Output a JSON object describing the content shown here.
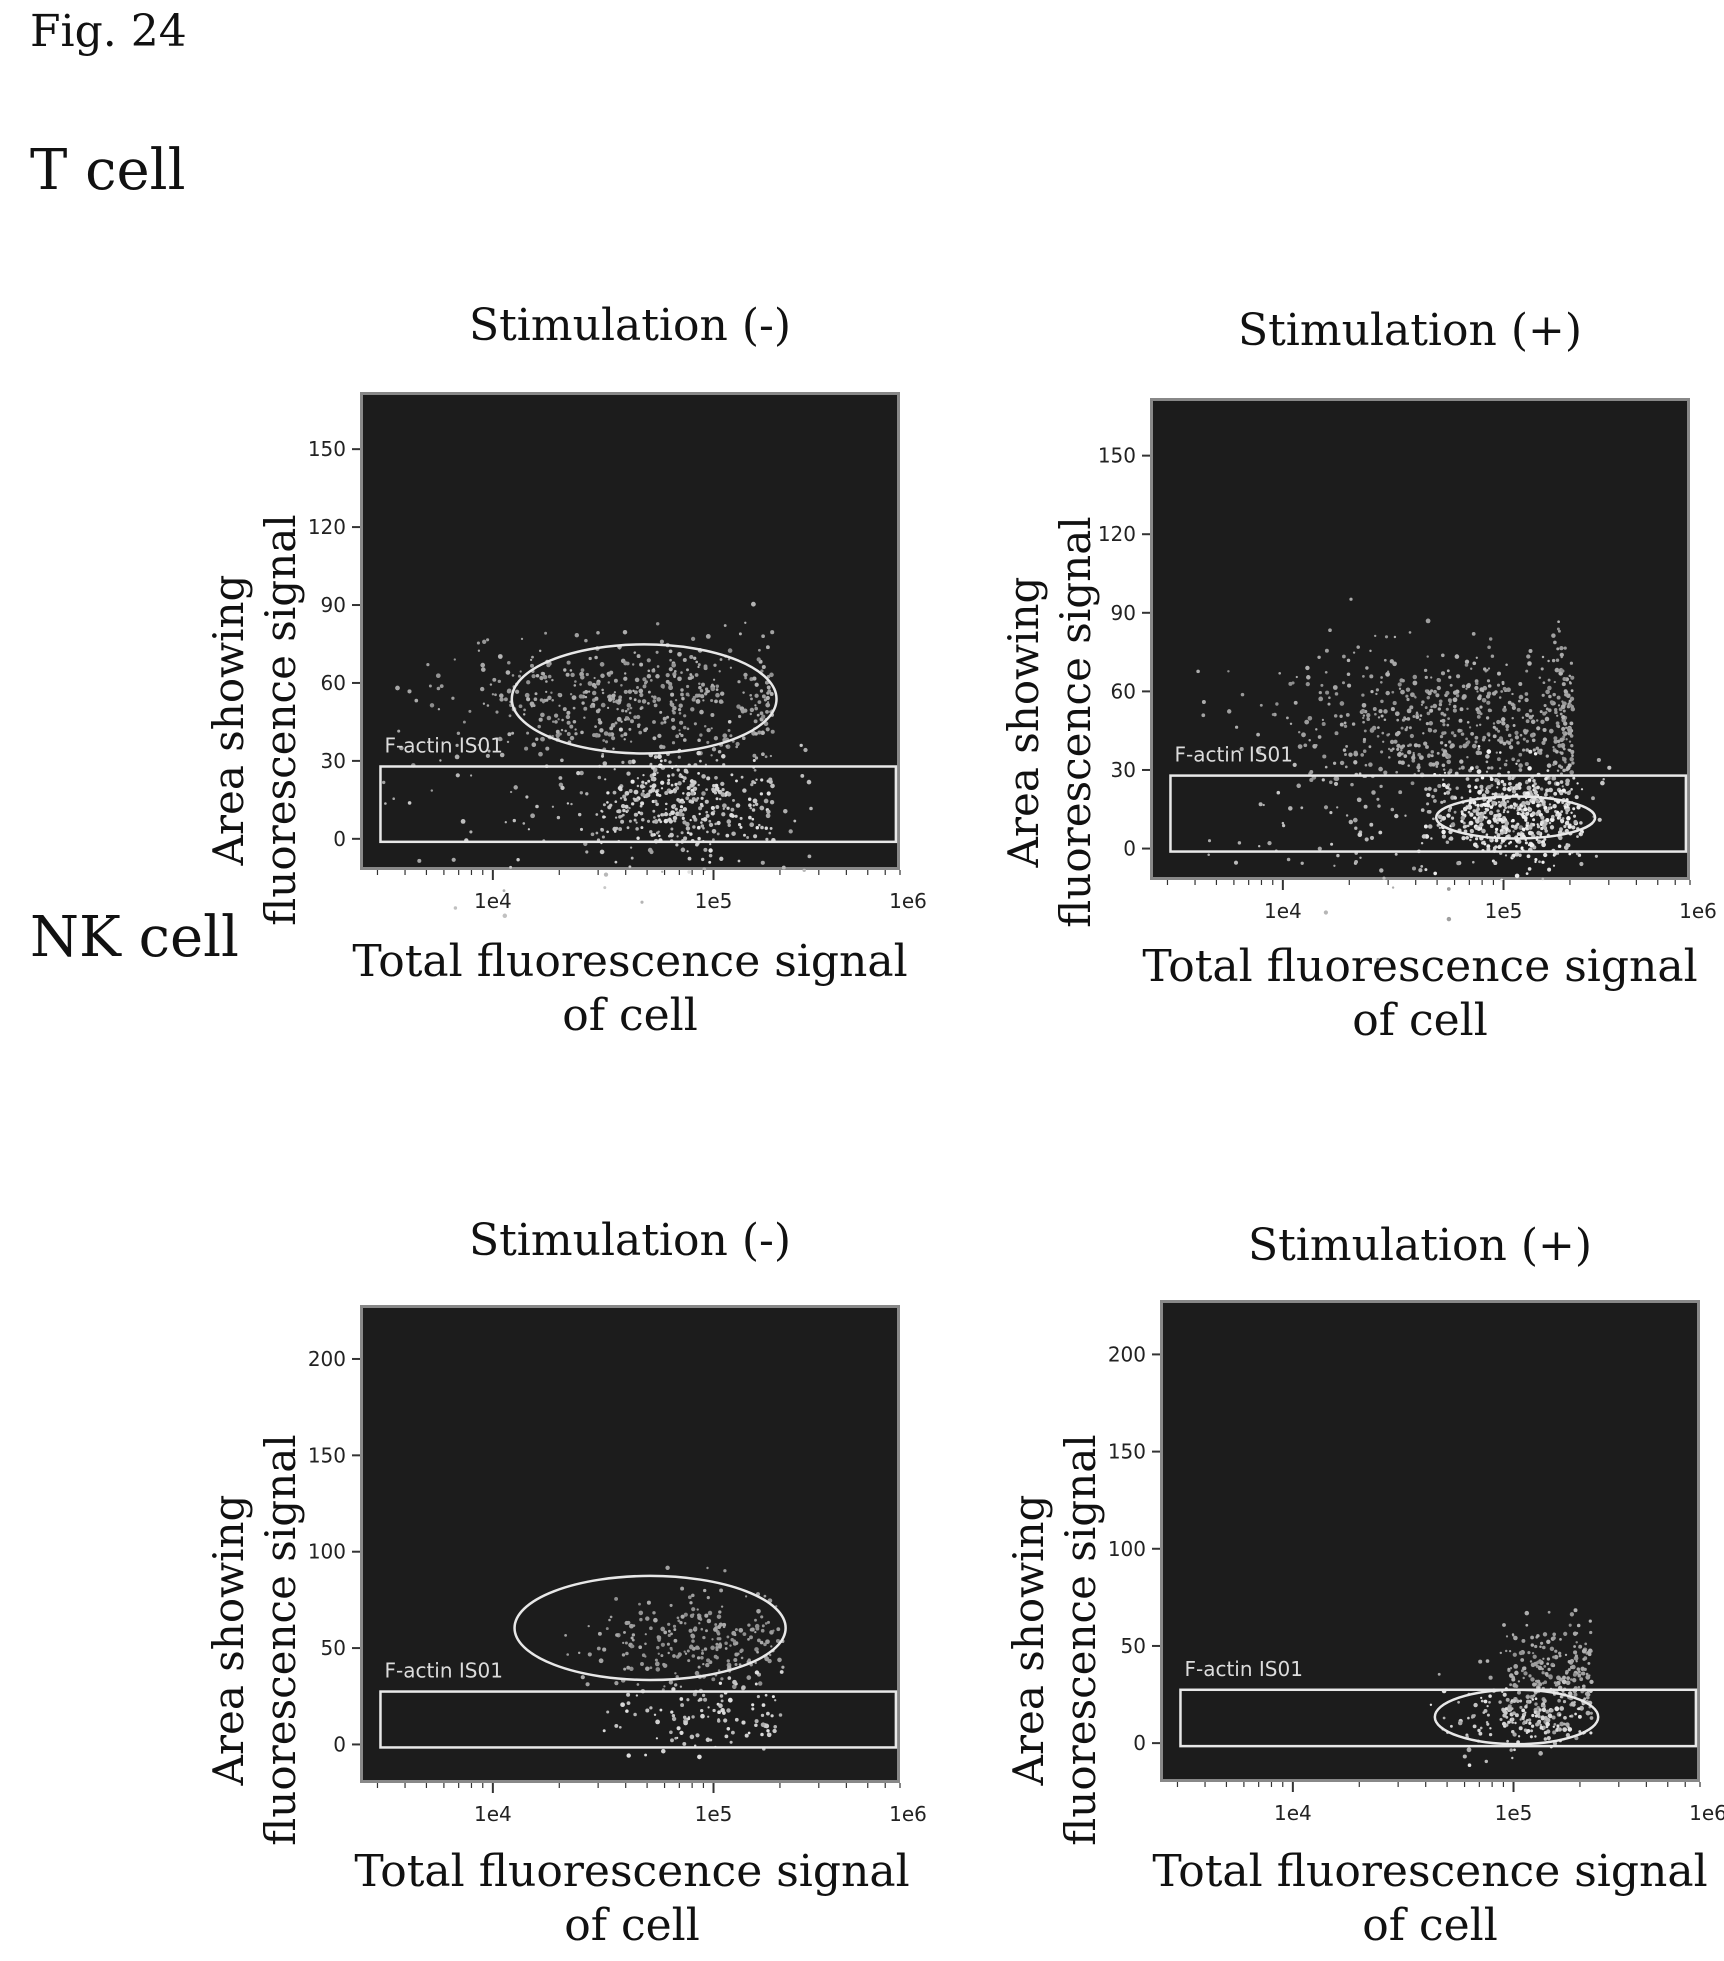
{
  "figure": {
    "label": "Fig. 24"
  },
  "sections": [
    {
      "title": "T cell"
    },
    {
      "title": "NK cell"
    }
  ],
  "chart_data": [
    {
      "type": "scatter",
      "section": "T cell",
      "title": "Stimulation (-)",
      "xlabel": "Total fluorescence signal of cell",
      "xlabel_lines": [
        "Total fluorescence signal",
        "of cell"
      ],
      "ylabel": "Area showing fluorescence signal",
      "ylabel_lines": [
        "Area showing",
        "fluorescence signal"
      ],
      "xscale": "log",
      "xlim": [
        2500,
        700000
      ],
      "ylim": [
        -12,
        172
      ],
      "xticks": [
        10000,
        100000,
        1000000
      ],
      "xtick_labels": [
        "1e4",
        "1e5",
        "1e6"
      ],
      "yticks": [
        0,
        30,
        60,
        90,
        120,
        150
      ],
      "ytick_labels": [
        "0",
        "30",
        "60",
        "90",
        "120",
        "150"
      ],
      "gate": {
        "name": "F-actin IS01",
        "x_range": [
          3000,
          650000
        ],
        "y_range": [
          0,
          29
        ]
      },
      "ellipse_gate": {
        "center": [
          47000,
          55
        ],
        "x_range": [
          12000,
          190000
        ],
        "y_half": 21
      },
      "clusters": [
        {
          "center": [
            45000,
            55
          ],
          "x_range": [
            3500,
            180000
          ],
          "y_spread": 12,
          "n": 520,
          "brightness": 0.55
        },
        {
          "center": [
            75000,
            14
          ],
          "x_range": [
            30000,
            180000
          ],
          "y_spread": 10,
          "n": 320,
          "brightness": 0.85
        },
        {
          "center": [
            40000,
            12
          ],
          "x_range": [
            3000,
            300000
          ],
          "y_spread": 14,
          "n": 120,
          "brightness": 0.7
        }
      ]
    },
    {
      "type": "scatter",
      "section": "T cell",
      "title": "Stimulation (+)",
      "xlabel": "Total fluorescence signal of cell",
      "xlabel_lines": [
        "Total fluorescence signal",
        "of cell"
      ],
      "ylabel": "Area showing fluorescence signal",
      "ylabel_lines": [
        "Area showing",
        "fluorescence signal"
      ],
      "xscale": "log",
      "xlim": [
        2500,
        700000
      ],
      "ylim": [
        -12,
        172
      ],
      "xticks": [
        10000,
        100000,
        1000000
      ],
      "xtick_labels": [
        "1e4",
        "1e5",
        "1e6"
      ],
      "yticks": [
        0,
        30,
        60,
        90,
        120,
        150
      ],
      "ytick_labels": [
        "0",
        "30",
        "60",
        "90",
        "120",
        "150"
      ],
      "gate": {
        "name": "F-actin IS01",
        "x_range": [
          3000,
          650000
        ],
        "y_range": [
          0,
          29
        ]
      },
      "ellipse_gate": {
        "center": [
          110000,
          13
        ],
        "x_range": [
          40000,
          210000
        ],
        "y_half": 8
      },
      "clusters": [
        {
          "center": [
            60000,
            50
          ],
          "x_range": [
            4000,
            200000
          ],
          "y_spread": 14,
          "n": 650,
          "brightness": 0.55
        },
        {
          "center": [
            110000,
            13
          ],
          "x_range": [
            40000,
            220000
          ],
          "y_spread": 9,
          "n": 520,
          "brightness": 0.95
        },
        {
          "center": [
            40000,
            12
          ],
          "x_range": [
            4000,
            300000
          ],
          "y_spread": 12,
          "n": 120,
          "brightness": 0.7
        }
      ]
    },
    {
      "type": "scatter",
      "section": "NK cell",
      "title": "Stimulation (-)",
      "xlabel": "Total fluorescence signal of cell",
      "xlabel_lines": [
        "Total fluorescence signal",
        "of cell"
      ],
      "ylabel": "Area showing fluorescence signal",
      "ylabel_lines": [
        "Area showing",
        "fluorescence signal"
      ],
      "xscale": "log",
      "xlim": [
        2500,
        700000
      ],
      "ylim": [
        -20,
        228
      ],
      "xticks": [
        10000,
        100000,
        1000000
      ],
      "xtick_labels": [
        "1e4",
        "1e5",
        "1e6"
      ],
      "yticks": [
        0,
        50,
        100,
        150,
        200
      ],
      "ytick_labels": [
        "0",
        "50",
        "100",
        "150",
        "200"
      ],
      "gate": {
        "name": "F-actin IS01",
        "x_range": [
          3000,
          650000
        ],
        "y_range": [
          0,
          29
        ]
      },
      "ellipse_gate": {
        "center": [
          50000,
          62
        ],
        "x_range": [
          13000,
          220000
        ],
        "y_half": 27
      },
      "clusters": [
        {
          "center": [
            80000,
            55
          ],
          "x_range": [
            20000,
            200000
          ],
          "y_spread": 12,
          "n": 260,
          "brightness": 0.5
        },
        {
          "center": [
            90000,
            15
          ],
          "x_range": [
            30000,
            200000
          ],
          "y_spread": 10,
          "n": 110,
          "brightness": 0.85
        }
      ]
    },
    {
      "type": "scatter",
      "section": "NK cell",
      "title": "Stimulation (+)",
      "xlabel": "Total fluorescence signal of cell",
      "xlabel_lines": [
        "Total fluorescence signal",
        "of cell"
      ],
      "ylabel": "Area showing fluorescence signal",
      "ylabel_lines": [
        "Area showing",
        "fluorescence signal"
      ],
      "xscale": "log",
      "xlim": [
        2500,
        700000
      ],
      "ylim": [
        -20,
        228
      ],
      "xticks": [
        10000,
        100000,
        1000000
      ],
      "xtick_labels": [
        "1e4",
        "1e5",
        "1e6"
      ],
      "yticks": [
        0,
        50,
        100,
        150,
        200
      ],
      "ytick_labels": [
        "0",
        "50",
        "100",
        "150",
        "200"
      ],
      "gate": {
        "name": "F-actin IS01",
        "x_range": [
          3000,
          650000
        ],
        "y_range": [
          0,
          29
        ]
      },
      "ellipse_gate": {
        "center": [
          100000,
          15
        ],
        "x_range": [
          40000,
          220000
        ],
        "y_half": 14
      },
      "clusters": [
        {
          "center": [
            150000,
            40
          ],
          "x_range": [
            60000,
            220000
          ],
          "y_spread": 14,
          "n": 220,
          "brightness": 0.55
        },
        {
          "center": [
            110000,
            15
          ],
          "x_range": [
            40000,
            220000
          ],
          "y_spread": 9,
          "n": 200,
          "brightness": 0.85
        }
      ]
    }
  ]
}
